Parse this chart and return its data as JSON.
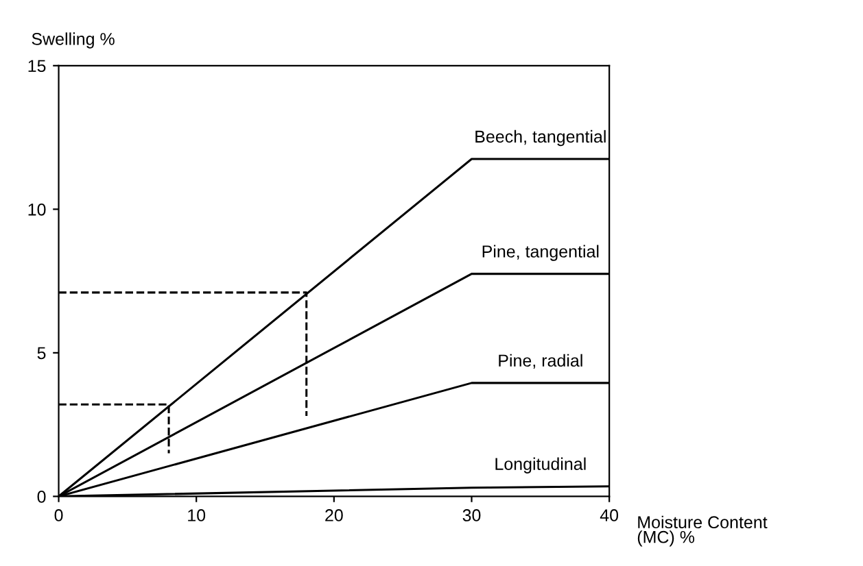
{
  "chart_data": {
    "type": "line",
    "ylabel": "Swelling %",
    "xlabel": "Moisture Content\n(MC) %",
    "xlim": [
      0,
      40
    ],
    "xticks": [
      0,
      10,
      20,
      30,
      40
    ],
    "ylim": [
      0,
      15
    ],
    "yticks": [
      0,
      5,
      10,
      15
    ],
    "grid": false,
    "legend": false,
    "marker": "none",
    "series": [
      {
        "name": "Beech, tangential",
        "color": "#000000",
        "x": [
          0,
          30,
          40
        ],
        "values": [
          0,
          11.75,
          11.75
        ]
      },
      {
        "name": "Pine, tangential",
        "color": "#000000",
        "x": [
          0,
          30,
          40
        ],
        "values": [
          0,
          7.75,
          7.75
        ]
      },
      {
        "name": "Pine, radial",
        "color": "#000000",
        "x": [
          0,
          30,
          40
        ],
        "values": [
          0,
          3.95,
          3.95
        ]
      },
      {
        "name": "Longitudinal",
        "color": "#000000",
        "x": [
          0,
          30,
          40
        ],
        "values": [
          0,
          0.3,
          0.35
        ]
      },
      {
        "color": "#000000",
        "line_style": "dashed",
        "x": [
          0,
          18,
          18
        ],
        "values": [
          7.1,
          7.1,
          2.8
        ]
      },
      {
        "color": "#000000",
        "line_style": "dashed",
        "x": [
          0,
          8,
          8
        ],
        "values": [
          3.2,
          3.2,
          1.5
        ]
      }
    ]
  }
}
